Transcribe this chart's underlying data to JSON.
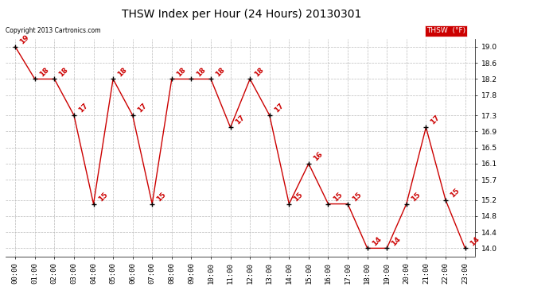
{
  "title": "THSW Index per Hour (24 Hours) 20130301",
  "copyright": "Copyright 2013 Cartronics.com",
  "legend_label": "THSW  (°F)",
  "hours": [
    0,
    1,
    2,
    3,
    4,
    5,
    6,
    7,
    8,
    9,
    10,
    11,
    12,
    13,
    14,
    15,
    16,
    17,
    18,
    19,
    20,
    21,
    22,
    23
  ],
  "values": [
    19.0,
    18.2,
    18.2,
    17.3,
    15.1,
    18.2,
    17.3,
    15.1,
    18.2,
    18.2,
    18.2,
    17.0,
    18.2,
    17.3,
    15.1,
    16.1,
    15.1,
    15.1,
    14.0,
    14.0,
    15.1,
    17.0,
    15.2,
    14.0
  ],
  "labels": [
    "19",
    "18",
    "18",
    "17",
    "15",
    "18",
    "17",
    "15",
    "18",
    "18",
    "18",
    "17",
    "18",
    "17",
    "15",
    "16",
    "15",
    "15",
    "14",
    "14",
    "15",
    "17",
    "15",
    "14"
  ],
  "xlabel_times": [
    "00:00",
    "01:00",
    "02:00",
    "03:00",
    "04:00",
    "05:00",
    "06:00",
    "07:00",
    "08:00",
    "09:00",
    "10:00",
    "11:00",
    "12:00",
    "13:00",
    "14:00",
    "15:00",
    "16:00",
    "17:00",
    "18:00",
    "19:00",
    "20:00",
    "21:00",
    "22:00",
    "23:00"
  ],
  "yticks": [
    14.0,
    14.4,
    14.8,
    15.2,
    15.7,
    16.1,
    16.5,
    16.9,
    17.3,
    17.8,
    18.2,
    18.6,
    19.0
  ],
  "ylim": [
    13.8,
    19.2
  ],
  "line_color": "#cc0000",
  "marker_color": "#000000",
  "bg_color": "#ffffff",
  "grid_color": "#bbbbbb",
  "title_fontsize": 10,
  "axis_fontsize": 6.5,
  "label_fontsize": 6.5,
  "legend_bg": "#cc0000",
  "legend_fg": "#ffffff"
}
